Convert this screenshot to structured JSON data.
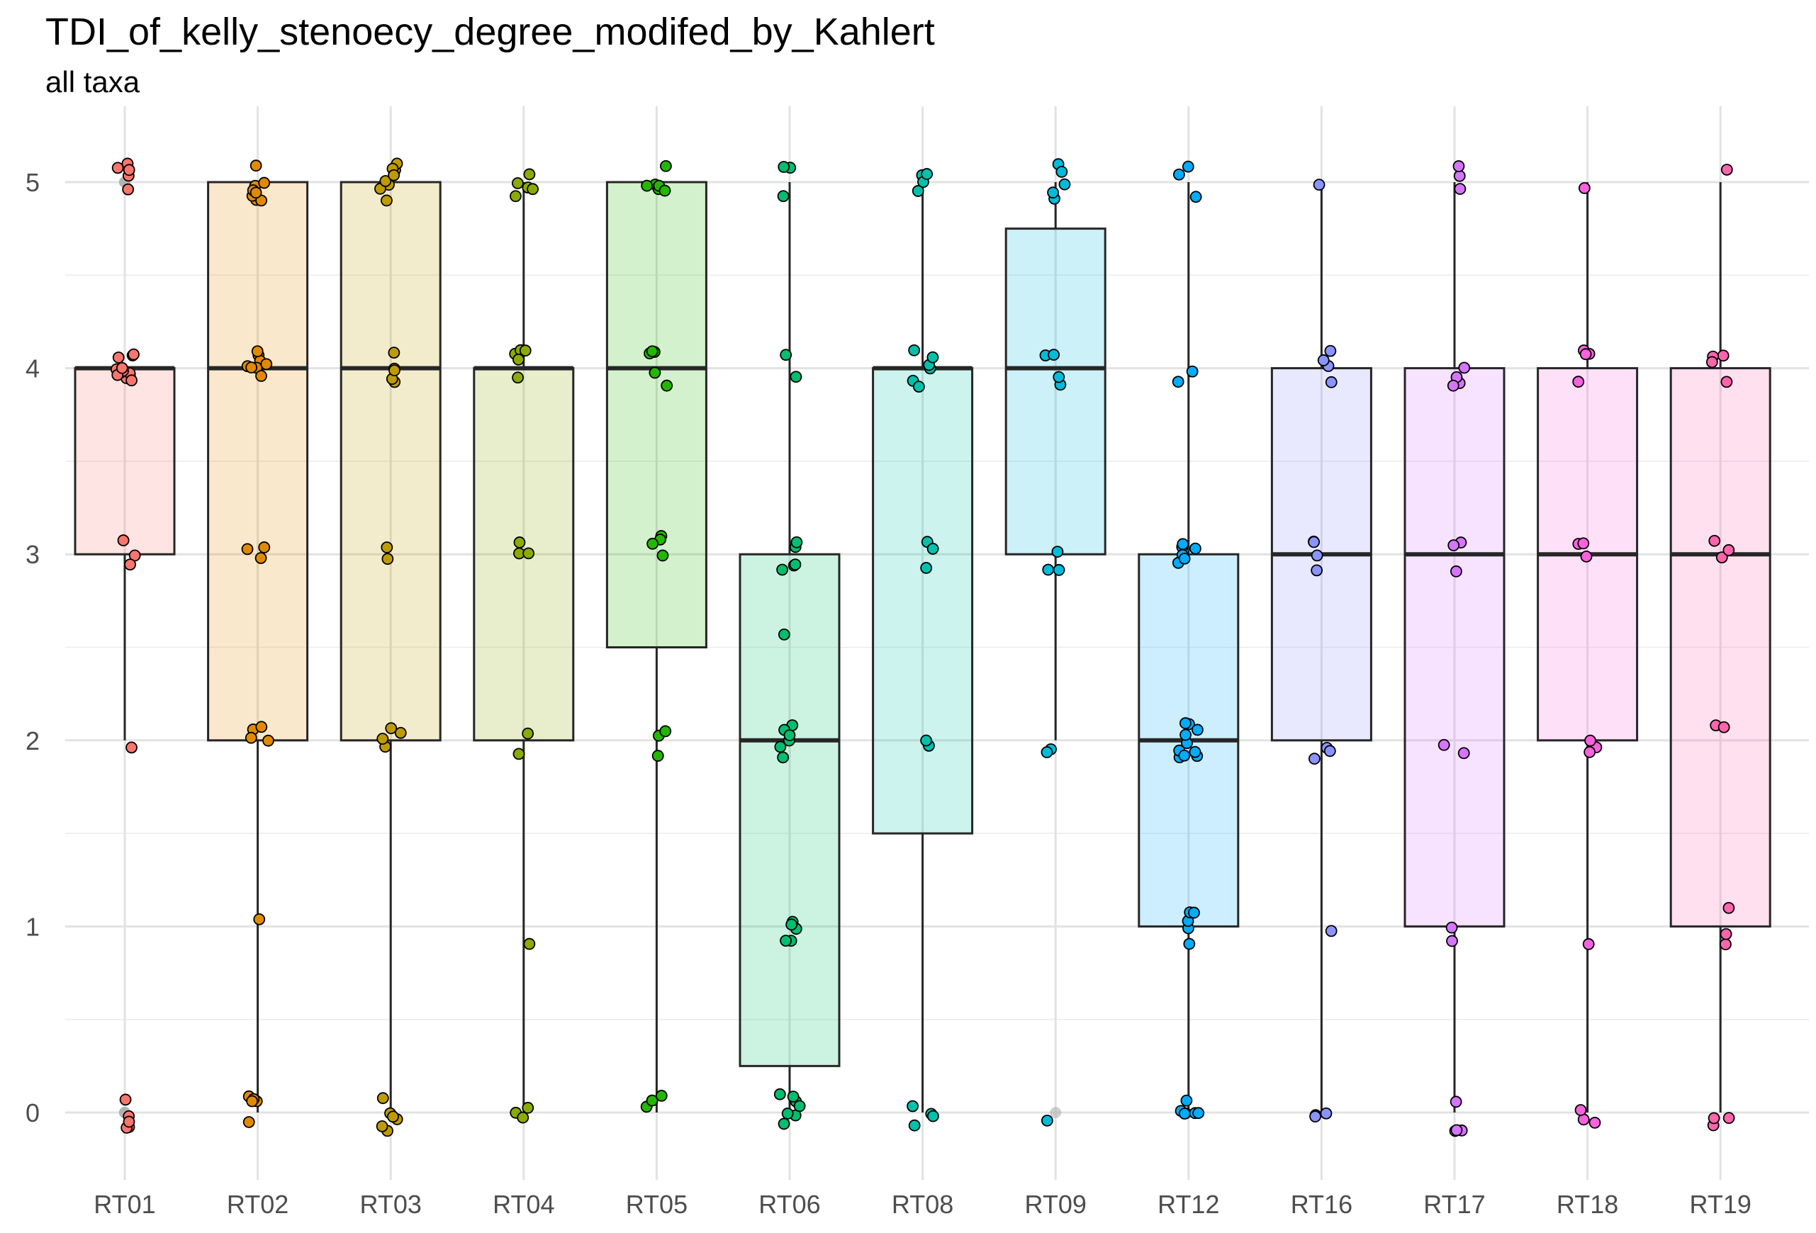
{
  "chart_data": {
    "type": "box",
    "title": "TDI_of_kelly_stenoecy_degree_modifed_by_Kahlert",
    "subtitle": "all taxa",
    "xlabel": "",
    "ylabel": "",
    "ylim": [
      -0.32,
      5.35
    ],
    "y_ticks": [
      0,
      1,
      2,
      3,
      4,
      5
    ],
    "grid": true,
    "legend": "none",
    "categories": [
      "RT01",
      "RT02",
      "RT03",
      "RT04",
      "RT05",
      "RT06",
      "RT08",
      "RT09",
      "RT12",
      "RT16",
      "RT17",
      "RT18",
      "RT19"
    ],
    "colors": [
      "#F8766D",
      "#E18A00",
      "#BE9C00",
      "#8CAB00",
      "#24B700",
      "#00BE70",
      "#00C1AB",
      "#00BBDA",
      "#00ACFC",
      "#8B93FF",
      "#D575FE",
      "#F962DD",
      "#FF65AC"
    ],
    "boxes": [
      {
        "category": "RT01",
        "q1": 3,
        "median": 4,
        "q3": 4,
        "whisker_low": 2,
        "whisker_high": 4
      },
      {
        "category": "RT02",
        "q1": 2,
        "median": 4,
        "q3": 5,
        "whisker_low": 0,
        "whisker_high": 5
      },
      {
        "category": "RT03",
        "q1": 2,
        "median": 4,
        "q3": 5,
        "whisker_low": 0,
        "whisker_high": 5
      },
      {
        "category": "RT04",
        "q1": 2,
        "median": 4,
        "q3": 4,
        "whisker_low": 0,
        "whisker_high": 5
      },
      {
        "category": "RT05",
        "q1": 2.5,
        "median": 4,
        "q3": 5,
        "whisker_low": 0,
        "whisker_high": 5
      },
      {
        "category": "RT06",
        "q1": 0.25,
        "median": 2,
        "q3": 3,
        "whisker_low": 0,
        "whisker_high": 5
      },
      {
        "category": "RT08",
        "q1": 1.5,
        "median": 4,
        "q3": 4,
        "whisker_low": 0,
        "whisker_high": 5
      },
      {
        "category": "RT09",
        "q1": 3,
        "median": 4,
        "q3": 4.75,
        "whisker_low": 2,
        "whisker_high": 5
      },
      {
        "category": "RT12",
        "q1": 1,
        "median": 2,
        "q3": 3,
        "whisker_low": 0,
        "whisker_high": 5
      },
      {
        "category": "RT16",
        "q1": 2,
        "median": 3,
        "q3": 4,
        "whisker_low": 0,
        "whisker_high": 5
      },
      {
        "category": "RT17",
        "q1": 1,
        "median": 3,
        "q3": 4,
        "whisker_low": 0,
        "whisker_high": 5
      },
      {
        "category": "RT18",
        "q1": 2,
        "median": 3,
        "q3": 4,
        "whisker_low": 0,
        "whisker_high": 5
      },
      {
        "category": "RT19",
        "q1": 1,
        "median": 3,
        "q3": 4,
        "whisker_low": 0,
        "whisker_high": 5
      }
    ],
    "outliers": [
      {
        "category": "RT01",
        "values": [
          5,
          5,
          5,
          5,
          5,
          0,
          0,
          0,
          0,
          0
        ]
      },
      {
        "category": "RT09",
        "values": [
          0
        ]
      }
    ],
    "points": [
      {
        "category": "RT01",
        "values": [
          5,
          5,
          5,
          5,
          5,
          4,
          4,
          4,
          4,
          4,
          4,
          4,
          4,
          4,
          4,
          4,
          4,
          4,
          3,
          3,
          3,
          2,
          0,
          0,
          0,
          0,
          0
        ]
      },
      {
        "category": "RT02",
        "values": [
          5,
          5,
          5,
          5,
          5,
          5,
          5,
          5,
          4,
          4,
          4,
          4,
          4,
          4,
          4,
          4,
          3,
          3,
          3,
          2,
          2,
          2,
          2,
          1,
          0,
          0,
          0,
          0,
          0
        ]
      },
      {
        "category": "RT03",
        "values": [
          5,
          5,
          5,
          5,
          5,
          5,
          5,
          5,
          4,
          4,
          4,
          4,
          4,
          3,
          3,
          2,
          2,
          2,
          2,
          0,
          0,
          0,
          0,
          0,
          0
        ]
      },
      {
        "category": "RT04",
        "values": [
          5,
          5,
          5,
          5,
          5,
          4,
          4,
          4,
          4,
          4,
          3,
          3,
          3,
          2,
          2,
          1,
          0,
          0,
          0
        ]
      },
      {
        "category": "RT05",
        "values": [
          5,
          5,
          5,
          5,
          5,
          5,
          5,
          4,
          4,
          4,
          4,
          4,
          3,
          3,
          3,
          3,
          2,
          2,
          2,
          0,
          0,
          0
        ]
      },
      {
        "category": "RT06",
        "values": [
          5,
          5,
          5,
          4,
          4,
          3,
          3,
          3,
          3,
          3,
          2.6,
          2,
          2,
          2,
          2,
          2,
          2,
          1,
          1,
          1,
          1,
          1,
          0,
          0,
          0,
          0,
          0,
          0,
          0
        ]
      },
      {
        "category": "RT08",
        "values": [
          5,
          5,
          5,
          5,
          4,
          4,
          4,
          4,
          4,
          4,
          3,
          3,
          3,
          2,
          2,
          0,
          0,
          0,
          0
        ]
      },
      {
        "category": "RT09",
        "values": [
          5,
          5,
          5,
          5,
          5,
          4,
          4,
          4,
          4,
          3,
          3,
          3,
          2,
          2,
          0
        ]
      },
      {
        "category": "RT12",
        "values": [
          5,
          5,
          5,
          4,
          4,
          3,
          3,
          3,
          3,
          3,
          3,
          2,
          2,
          2,
          2,
          2,
          2,
          2,
          2,
          2,
          2,
          1,
          1,
          1,
          1,
          1,
          0,
          0,
          0,
          0,
          0,
          0
        ]
      },
      {
        "category": "RT16",
        "values": [
          5,
          4,
          4,
          4,
          4,
          3,
          3,
          3,
          3,
          2,
          2,
          2,
          1,
          0,
          0,
          0
        ]
      },
      {
        "category": "RT17",
        "values": [
          5,
          5,
          5,
          4,
          4,
          4,
          4,
          3,
          3,
          3,
          2,
          2,
          1,
          1,
          0,
          0,
          0,
          0
        ]
      },
      {
        "category": "RT18",
        "values": [
          5,
          4,
          4,
          4,
          4,
          3,
          3,
          3,
          2,
          2,
          2,
          1,
          0,
          0,
          0
        ]
      },
      {
        "category": "RT19",
        "values": [
          5,
          4,
          4,
          4,
          4,
          3,
          3,
          3,
          2,
          2,
          1,
          1,
          1,
          0,
          0,
          0
        ]
      }
    ]
  }
}
